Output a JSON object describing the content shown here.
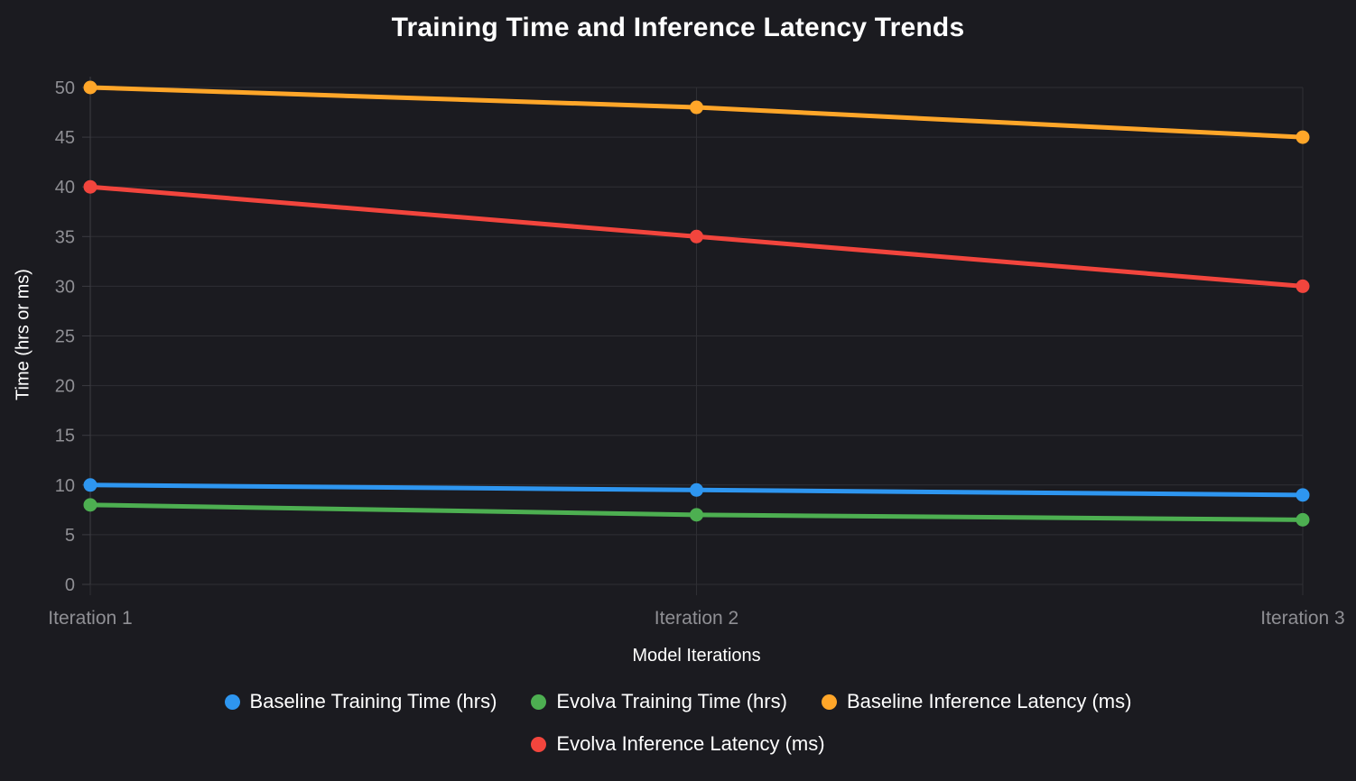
{
  "chart_data": {
    "type": "line",
    "title": "Training Time and Inference Latency Trends",
    "xlabel": "Model Iterations",
    "ylabel": "Time (hrs or ms)",
    "categories": [
      "Iteration 1",
      "Iteration 2",
      "Iteration 3"
    ],
    "ylim": [
      0,
      50
    ],
    "ytick_step": 5,
    "grid": true,
    "legend_position": "bottom",
    "series": [
      {
        "name": "Baseline Training Time (hrs)",
        "color": "#2e96f0",
        "values": [
          10,
          9.5,
          9
        ]
      },
      {
        "name": "Evolva Training Time (hrs)",
        "color": "#4daf51",
        "values": [
          8,
          7,
          6.5
        ]
      },
      {
        "name": "Baseline Inference Latency (ms)",
        "color": "#ffa629",
        "values": [
          50,
          48,
          45
        ]
      },
      {
        "name": "Evolva Inference Latency (ms)",
        "color": "#f2453d",
        "values": [
          40,
          35,
          30
        ]
      }
    ],
    "colors": {
      "background": "#1b1b20",
      "gridline": "#2f2f34",
      "axis_line": "#3c3c42",
      "tick_label": "#8f8f94",
      "text": "#ffffff"
    }
  }
}
